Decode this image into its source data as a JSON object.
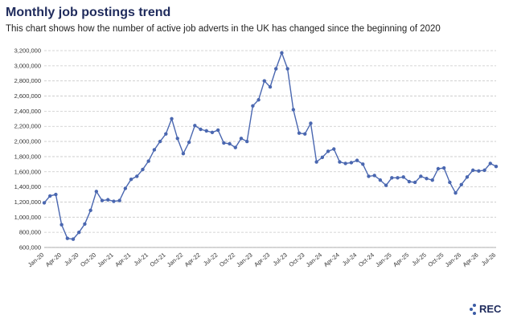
{
  "chart_data": {
    "type": "line",
    "title": "Monthly job postings trend",
    "subtitle": "This chart shows how the number of active job adverts in the UK has changed since the beginning of 2020",
    "categories": [
      "Jan-20",
      null,
      null,
      "Apr-20",
      null,
      null,
      "Jul-20",
      null,
      null,
      "Oct-20",
      null,
      null,
      "Jan-21",
      null,
      null,
      "Apr-21",
      null,
      null,
      "Jul-21",
      null,
      null,
      "Oct-21",
      null,
      null,
      "Jan-22",
      null,
      null,
      "Apr-22",
      null,
      null,
      "Jul-22",
      null,
      null,
      "Oct-22",
      null,
      null,
      "Jan-23",
      null,
      null,
      "Apr-23",
      null,
      null,
      "Jul-23",
      null,
      null,
      "Oct-23",
      null,
      null,
      "Jan-24",
      null,
      null,
      "Apr-24",
      null,
      null,
      "Jul-24",
      null,
      null,
      "Oct-24",
      null,
      null,
      "Jan-25",
      null,
      null,
      "Apr-25",
      null,
      null,
      "Jul-25",
      null,
      null,
      "Oct-25",
      null,
      null,
      "Jan-26",
      null,
      null,
      "Apr-26",
      null,
      null,
      "Jul-26"
    ],
    "values": [
      1190000,
      1280000,
      1300000,
      900000,
      720000,
      710000,
      800000,
      910000,
      1090000,
      1340000,
      1220000,
      1230000,
      1210000,
      1220000,
      1380000,
      1500000,
      1540000,
      1630000,
      1740000,
      1890000,
      2000000,
      2100000,
      2300000,
      2040000,
      1840000,
      1990000,
      2210000,
      2160000,
      2140000,
      2120000,
      2150000,
      1980000,
      1970000,
      1920000,
      2040000,
      2000000,
      2470000,
      2550000,
      2800000,
      2720000,
      2960000,
      3170000,
      2960000,
      2420000,
      2110000,
      2100000,
      2240000,
      1730000,
      1790000,
      1870000,
      1900000,
      1730000,
      1710000,
      1720000,
      1750000,
      1700000,
      1540000,
      1550000,
      1490000,
      1420000,
      1520000,
      1520000,
      1530000,
      1470000,
      1460000,
      1540000,
      1510000,
      1490000,
      1640000,
      1650000,
      1460000,
      1320000,
      1430000,
      1530000,
      1620000,
      1610000,
      1620000,
      1710000,
      1670000
    ],
    "color": "#4a67b0",
    "ylim": [
      600000,
      3200000
    ],
    "yticks": [
      {
        "value": 600000,
        "label": "600,000"
      },
      {
        "value": 800000,
        "label": "800,000"
      },
      {
        "value": 1000000,
        "label": "1,000,000"
      },
      {
        "value": 1200000,
        "label": "1,200,000"
      },
      {
        "value": 1400000,
        "label": "1,400,000"
      },
      {
        "value": 1600000,
        "label": "1,600,000"
      },
      {
        "value": 1800000,
        "label": "1,800,000"
      },
      {
        "value": 2000000,
        "label": "2,000,000"
      },
      {
        "value": 2200000,
        "label": "2,200,000"
      },
      {
        "value": 2400000,
        "label": "2,400,000"
      },
      {
        "value": 2600000,
        "label": "2,600,000"
      },
      {
        "value": 2800000,
        "label": "2,800,000"
      },
      {
        "value": 3000000,
        "label": "3,000,000"
      },
      {
        "value": 3200000,
        "label": "3,200,000"
      }
    ],
    "grid": true
  },
  "logo": "REC"
}
